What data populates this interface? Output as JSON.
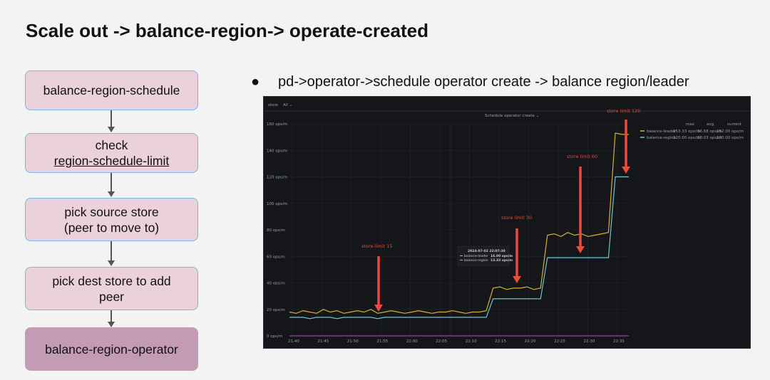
{
  "title": "Scale out -> balance-region-> operate-created",
  "flow": [
    {
      "line1": "balance-region-schedule"
    },
    {
      "line1": "check",
      "line2": "region-schedule-limit"
    },
    {
      "line1": "pick source store",
      "line2": "(peer to move to)"
    },
    {
      "line1": "pick dest store to add",
      "line2": "peer"
    },
    {
      "line1": "balance-region-operator"
    }
  ],
  "bullet": {
    "marker": "●",
    "text": "pd->operator->schedule operator create -> balance region/leader"
  },
  "chart_data": {
    "type": "line",
    "panel_title": "Schedule operator create ⌄",
    "top_bar": {
      "store": "store",
      "all": "All ⌄"
    },
    "y_ticks": [
      "0 ops/m",
      "20 ops/m",
      "40 ops/m",
      "60 ops/m",
      "80 ops/m",
      "100 ops/m",
      "120 ops/m",
      "140 ops/m",
      "160 ops/m"
    ],
    "ylim": [
      0,
      160
    ],
    "x_ticks": [
      "21:40",
      "21:45",
      "21:50",
      "21:55",
      "22:00",
      "22:05",
      "22:10",
      "22:15",
      "22:20",
      "22:25",
      "22:30",
      "22:35"
    ],
    "legend_headers": [
      "max",
      "avg",
      "current"
    ],
    "series": [
      {
        "name": "balance-leader",
        "color": "#d4b12f",
        "max": "153.33 ops/m",
        "avg": "36.68 ops/m",
        "current": "152.00 ops/m",
        "values": [
          18,
          17,
          19,
          18,
          17,
          20,
          18,
          19,
          17,
          18,
          19,
          18,
          20,
          17,
          18,
          19,
          18,
          17,
          18,
          19,
          18,
          17,
          18,
          18,
          19,
          18,
          17,
          18,
          18,
          19,
          36,
          37,
          35,
          36,
          36,
          37,
          35,
          36,
          76,
          77,
          75,
          78,
          76,
          77,
          75,
          76,
          77,
          78,
          153,
          152,
          152
        ]
      },
      {
        "name": "balance-region",
        "color": "#6fc6d6",
        "max": "120.00 ops/m",
        "avg": "28.03 ops/m",
        "current": "120.00 ops/m",
        "values": [
          14,
          14,
          14,
          13,
          14,
          14,
          14,
          13,
          14,
          14,
          14,
          14,
          14,
          13,
          14,
          14,
          14,
          14,
          14,
          14,
          14,
          14,
          14,
          14,
          14,
          14,
          14,
          14,
          14,
          14,
          28,
          28,
          28,
          28,
          28,
          28,
          28,
          28,
          59,
          59,
          59,
          59,
          59,
          59,
          59,
          59,
          59,
          59,
          120,
          120,
          120
        ]
      }
    ],
    "tooltip": {
      "time": "2024-07-02 22:07:30",
      "rows": [
        {
          "name": "balance-leader",
          "value": "16.00 ops/m"
        },
        {
          "name": "balance-region",
          "value": "13.33 ops/m"
        }
      ]
    },
    "annotations": [
      "store-limit 15",
      "store limit 30",
      "store limit 60",
      "store limit 120"
    ]
  }
}
